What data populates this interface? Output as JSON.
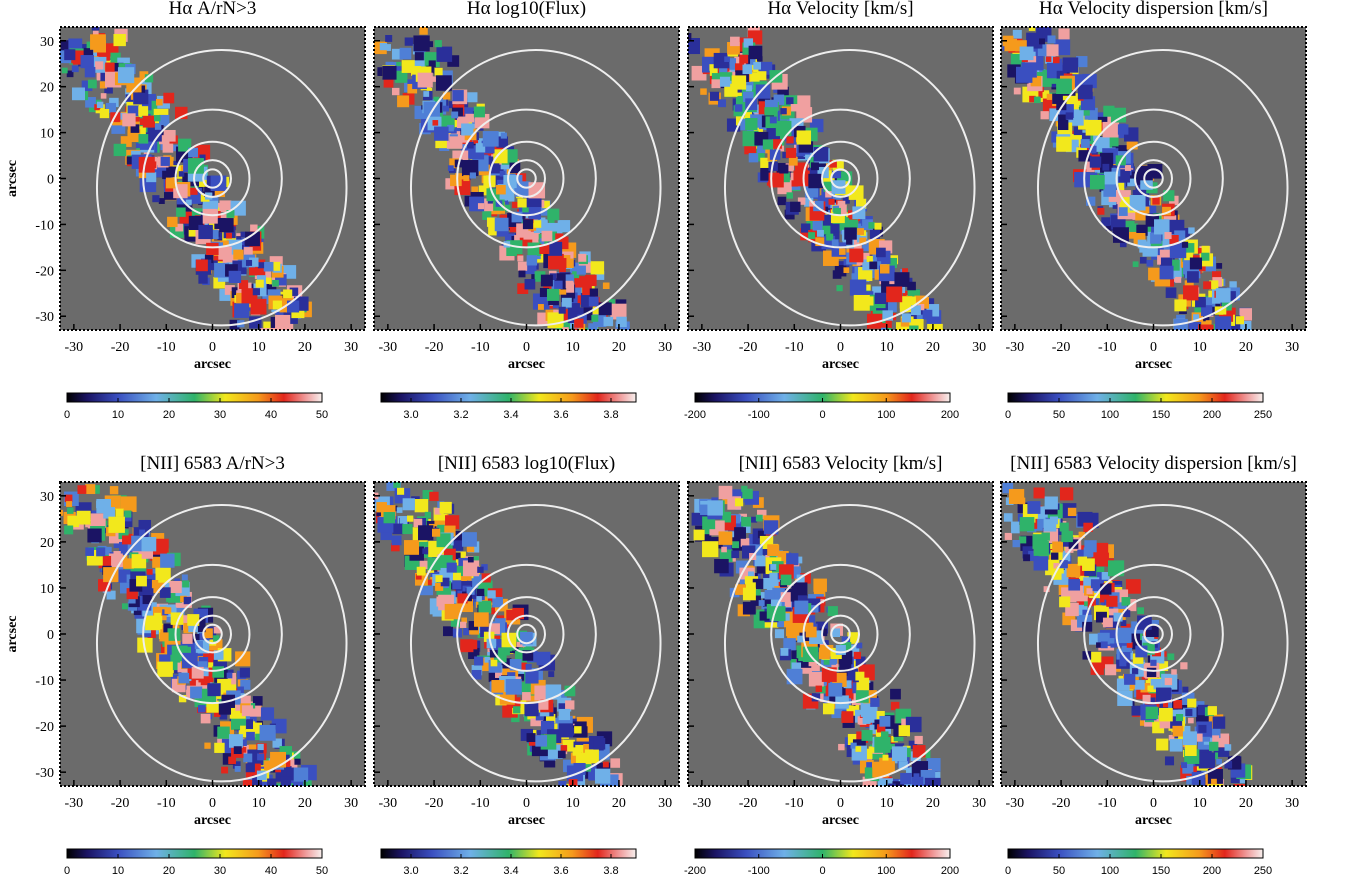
{
  "chart_data": [
    {
      "type": "map",
      "title": "Hα A/rN>3",
      "x_label": "arcsec",
      "y_label": "arcsec",
      "xlim": [
        -33,
        33
      ],
      "ylim": [
        -33,
        33
      ],
      "xticks": [
        -30,
        -20,
        -10,
        0,
        10,
        20,
        30
      ],
      "yticks": [
        -30,
        -20,
        -10,
        0,
        10,
        20,
        30
      ],
      "clim": [
        0,
        50
      ],
      "cticks": [
        0,
        10,
        20,
        30,
        40,
        50
      ]
    },
    {
      "type": "map",
      "title": "Hα log10(Flux)",
      "x_label": "arcsec",
      "xlim": [
        -33,
        33
      ],
      "ylim": [
        -33,
        33
      ],
      "xticks": [
        -30,
        -20,
        -10,
        0,
        10,
        20,
        30
      ],
      "yticks": [
        -30,
        -20,
        -10,
        0,
        10,
        20,
        30
      ],
      "clim": [
        2.88,
        3.9
      ],
      "cticks": [
        {
          "value": 3,
          "label": "3.0"
        },
        {
          "value": 3.2,
          "label": "3.2"
        },
        {
          "value": 3.4,
          "label": "3.4"
        },
        {
          "value": 3.6,
          "label": "3.6"
        },
        {
          "value": 3.8,
          "label": "3.8"
        }
      ]
    },
    {
      "type": "map",
      "title": "Hα Velocity [km/s]",
      "x_label": "arcsec",
      "xlim": [
        -33,
        33
      ],
      "ylim": [
        -33,
        33
      ],
      "xticks": [
        -30,
        -20,
        -10,
        0,
        10,
        20,
        30
      ],
      "yticks": [
        -30,
        -20,
        -10,
        0,
        10,
        20,
        30
      ],
      "clim": [
        -200,
        200
      ],
      "cticks": [
        -200,
        -100,
        0,
        100,
        200
      ]
    },
    {
      "type": "map",
      "title": "Hα Velocity dispersion [km/s]",
      "x_label": "arcsec",
      "xlim": [
        -33,
        33
      ],
      "ylim": [
        -33,
        33
      ],
      "xticks": [
        -30,
        -20,
        -10,
        0,
        10,
        20,
        30
      ],
      "yticks": [
        -30,
        -20,
        -10,
        0,
        10,
        20,
        30
      ],
      "clim": [
        0,
        250
      ],
      "cticks": [
        0,
        50,
        100,
        150,
        200,
        250
      ]
    },
    {
      "type": "map",
      "title": "[NII] 6583 A/rN>3",
      "x_label": "arcsec",
      "y_label": "arcsec",
      "xlim": [
        -33,
        33
      ],
      "ylim": [
        -33,
        33
      ],
      "xticks": [
        -30,
        -20,
        -10,
        0,
        10,
        20,
        30
      ],
      "yticks": [
        -30,
        -20,
        -10,
        0,
        10,
        20,
        30
      ],
      "clim": [
        0,
        50
      ],
      "cticks": [
        0,
        10,
        20,
        30,
        40,
        50
      ]
    },
    {
      "type": "map",
      "title": "[NII] 6583 log10(Flux)",
      "x_label": "arcsec",
      "xlim": [
        -33,
        33
      ],
      "ylim": [
        -33,
        33
      ],
      "xticks": [
        -30,
        -20,
        -10,
        0,
        10,
        20,
        30
      ],
      "yticks": [
        -30,
        -20,
        -10,
        0,
        10,
        20,
        30
      ],
      "clim": [
        2.88,
        3.9
      ],
      "cticks": [
        {
          "value": 3,
          "label": "3.0"
        },
        {
          "value": 3.2,
          "label": "3.2"
        },
        {
          "value": 3.4,
          "label": "3.4"
        },
        {
          "value": 3.6,
          "label": "3.6"
        },
        {
          "value": 3.8,
          "label": "3.8"
        }
      ]
    },
    {
      "type": "map",
      "title": "[NII] 6583 Velocity [km/s]",
      "x_label": "arcsec",
      "xlim": [
        -33,
        33
      ],
      "ylim": [
        -33,
        33
      ],
      "xticks": [
        -30,
        -20,
        -10,
        0,
        10,
        20,
        30
      ],
      "yticks": [
        -30,
        -20,
        -10,
        0,
        10,
        20,
        30
      ],
      "clim": [
        -200,
        200
      ],
      "cticks": [
        -200,
        -100,
        0,
        100,
        200
      ]
    },
    {
      "type": "map",
      "title": "[NII] 6583 Velocity dispersion [km/s]",
      "x_label": "arcsec",
      "xlim": [
        -33,
        33
      ],
      "ylim": [
        -33,
        33
      ],
      "xticks": [
        -30,
        -20,
        -10,
        0,
        10,
        20,
        30
      ],
      "yticks": [
        -30,
        -20,
        -10,
        0,
        10,
        20,
        30
      ],
      "clim": [
        0,
        250
      ],
      "cticks": [
        0,
        50,
        100,
        150,
        200,
        250
      ]
    }
  ]
}
